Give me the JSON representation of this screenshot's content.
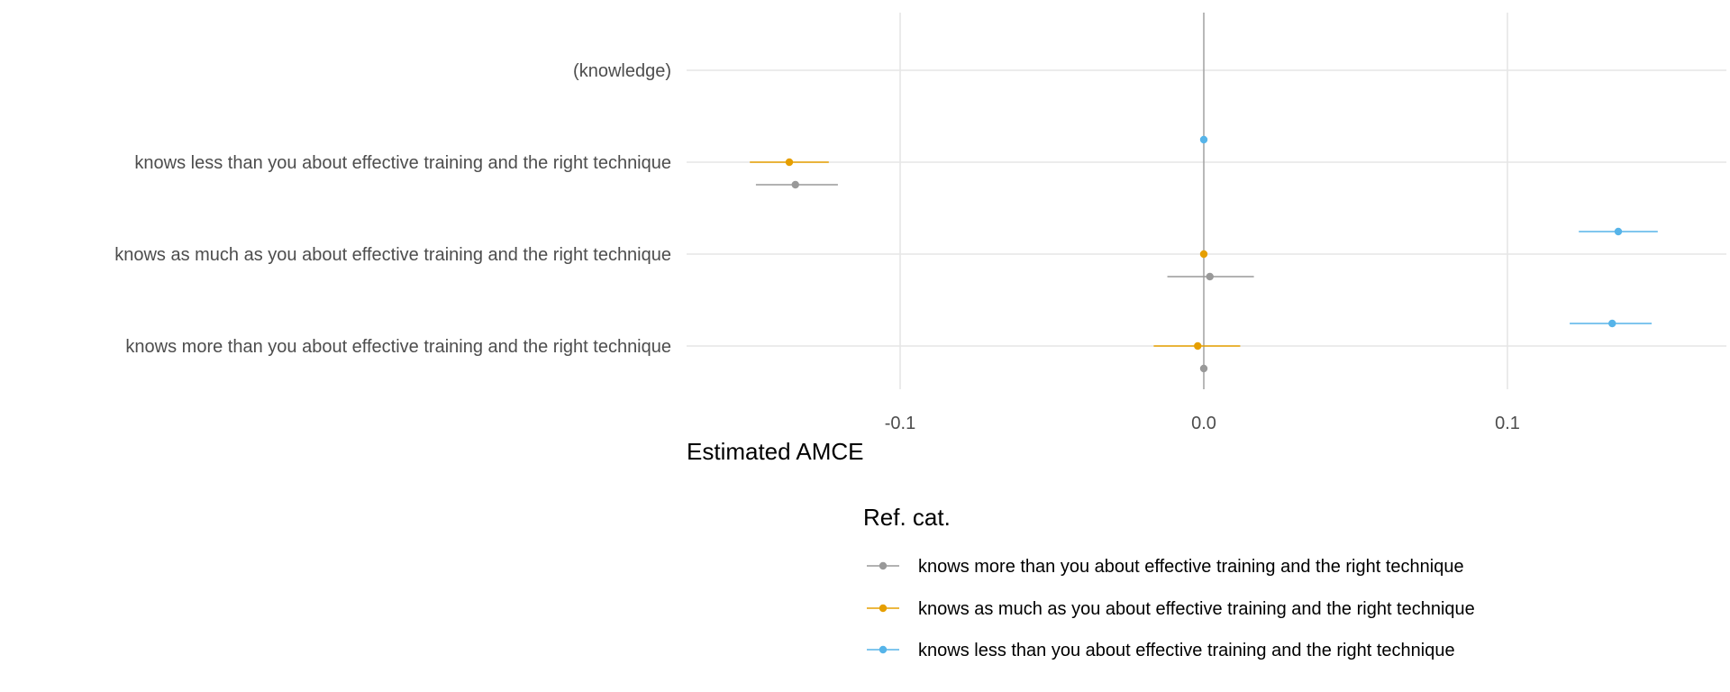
{
  "chart_data": {
    "type": "scatter",
    "subtype": "coefficient-plot-with-error-bars",
    "title": "",
    "xlabel": "Estimated AMCE",
    "ylabel": "",
    "xlim": [
      -0.172,
      0.172
    ],
    "x_ticks": [
      -0.1,
      0.0,
      0.1
    ],
    "x_tick_labels": [
      "-0.1",
      "0.0",
      "0.1"
    ],
    "zero_line": 0.0,
    "grid": true,
    "categories": [
      "(knowledge)",
      "knows less than you about effective training and the right technique",
      "knows as much as you about effective training and the right technique",
      "knows more than you about effective training and the right technique"
    ],
    "legend": {
      "title": "Ref. cat.",
      "position": "bottom",
      "entries": [
        "knows more than you about effective training and the right technique",
        "knows as much as you about effective training and the right technique",
        "knows less than you about effective training and the right technique"
      ]
    },
    "series": [
      {
        "name": "knows more than you about effective training and the right technique",
        "color": "#999999",
        "points": [
          {
            "category": "knows less than you about effective training and the right technique",
            "estimate": -0.1345,
            "lower": -0.1475,
            "upper": -0.1205
          },
          {
            "category": "knows as much as you about effective training and the right technique",
            "estimate": 0.002,
            "lower": -0.012,
            "upper": 0.0165
          },
          {
            "category": "knows more than you about effective training and the right technique",
            "estimate": 0.0,
            "lower": 0.0,
            "upper": 0.0
          }
        ]
      },
      {
        "name": "knows as much as you about effective training and the right technique",
        "color": "#E69F00",
        "points": [
          {
            "category": "knows less than you about effective training and the right technique",
            "estimate": -0.1365,
            "lower": -0.1495,
            "upper": -0.1235
          },
          {
            "category": "knows as much as you about effective training and the right technique",
            "estimate": 0.0,
            "lower": 0.0,
            "upper": 0.0
          },
          {
            "category": "knows more than you about effective training and the right technique",
            "estimate": -0.002,
            "lower": -0.0165,
            "upper": 0.012
          }
        ]
      },
      {
        "name": "knows less than you about effective training and the right technique",
        "color": "#56B4E9",
        "points": [
          {
            "category": "knows less than you about effective training and the right technique",
            "estimate": 0.0,
            "lower": 0.0,
            "upper": 0.0
          },
          {
            "category": "knows as much as you about effective training and the right technique",
            "estimate": 0.1365,
            "lower": 0.1235,
            "upper": 0.1495
          },
          {
            "category": "knows more than you about effective training and the right technique",
            "estimate": 0.1345,
            "lower": 0.1205,
            "upper": 0.1475
          }
        ]
      }
    ]
  }
}
